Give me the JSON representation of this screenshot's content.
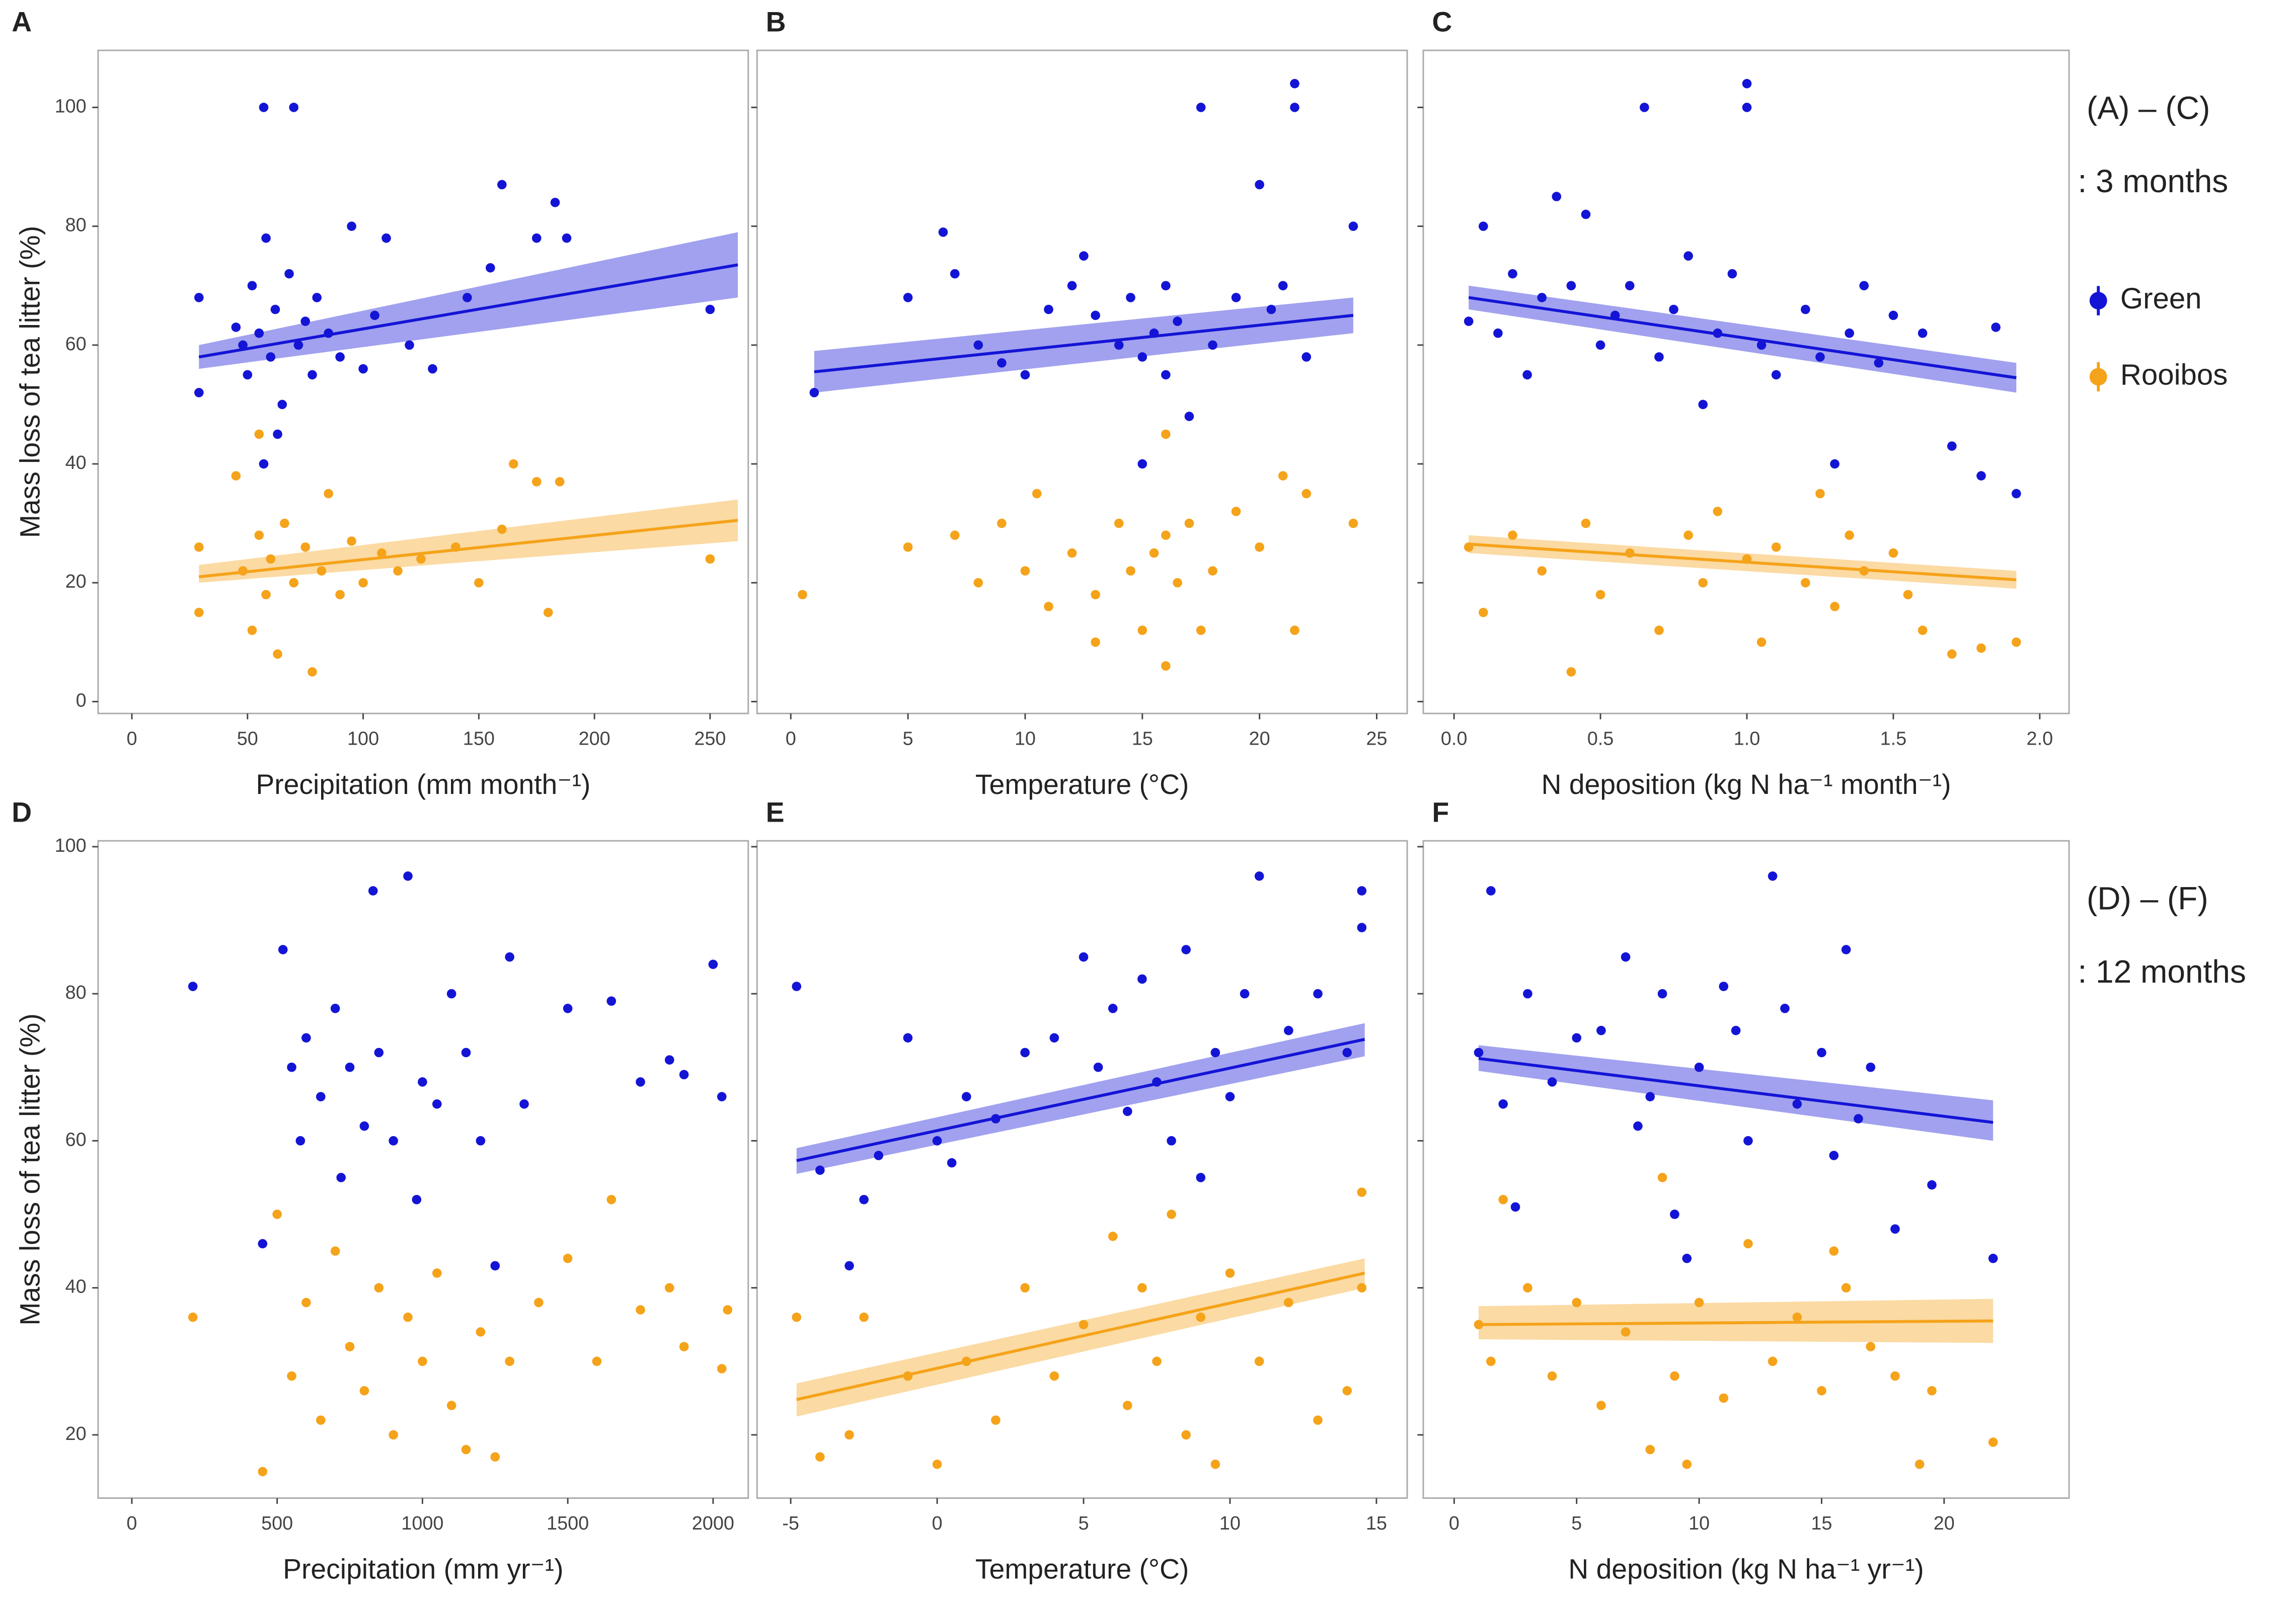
{
  "chart_data": [
    {
      "type": "scatter",
      "panel_label": "A",
      "x_label": "Precipitation (mm month⁻¹)",
      "y_label": "Mass loss of tea litter (%)",
      "xlim": [
        -14.6,
        266.5
      ],
      "xticks": [
        0,
        50,
        100,
        150,
        200,
        250
      ],
      "ylim": [
        -2,
        109.6
      ],
      "yticks": [
        0,
        20,
        40,
        60,
        80,
        100
      ],
      "series": [
        {
          "color": "#1414d6",
          "x": [
            29,
            29,
            45,
            50,
            52,
            55,
            57,
            58,
            60,
            62,
            65,
            68,
            70,
            72,
            75,
            78,
            80,
            85,
            90,
            95,
            100,
            105,
            110,
            120,
            130,
            145,
            155,
            160,
            175,
            183,
            188,
            250,
            57,
            63,
            48
          ],
          "values": [
            68,
            52,
            63,
            55,
            70,
            62,
            100,
            78,
            58,
            66,
            50,
            72,
            100,
            60,
            64,
            55,
            68,
            62,
            58,
            80,
            56,
            65,
            78,
            60,
            56,
            68,
            73,
            87,
            78,
            84,
            78,
            66,
            40,
            45,
            60
          ],
          "fit": {
            "x": [
              29,
              262
            ],
            "values": [
              58,
              73.5
            ],
            "lower": [
              56,
              68
            ],
            "upper": [
              60,
              79
            ]
          }
        },
        {
          "color": "#f5a31a",
          "x": [
            29,
            29,
            45,
            48,
            52,
            55,
            58,
            60,
            63,
            66,
            70,
            75,
            78,
            82,
            85,
            90,
            95,
            100,
            108,
            115,
            125,
            140,
            150,
            160,
            165,
            175,
            180,
            185,
            250,
            55
          ],
          "values": [
            26,
            15,
            38,
            22,
            12,
            28,
            18,
            24,
            8,
            30,
            20,
            26,
            5,
            22,
            35,
            18,
            27,
            20,
            25,
            22,
            24,
            26,
            20,
            29,
            40,
            37,
            15,
            37,
            24,
            45
          ],
          "fit": {
            "x": [
              29,
              262
            ],
            "values": [
              21,
              30.5
            ],
            "lower": [
              20,
              27
            ],
            "upper": [
              23,
              34
            ]
          }
        }
      ]
    },
    {
      "type": "scatter",
      "panel_label": "B",
      "x_label": "Temperature (°C)",
      "xlim": [
        -1.44,
        26.3
      ],
      "xticks": [
        0,
        5,
        10,
        15,
        20,
        25
      ],
      "ylim": [
        -2,
        109.6
      ],
      "series": [
        {
          "color": "#1414d6",
          "x": [
            1,
            5,
            6.5,
            7,
            8,
            9,
            10,
            11,
            12,
            12.5,
            13,
            14,
            14.5,
            15,
            15.5,
            16,
            16,
            16.5,
            17,
            17.5,
            18,
            19,
            20,
            20.5,
            21,
            21.5,
            21.5,
            22,
            24,
            15
          ],
          "values": [
            52,
            68,
            79,
            72,
            60,
            57,
            55,
            66,
            70,
            75,
            65,
            60,
            68,
            58,
            62,
            55,
            70,
            64,
            48,
            100,
            60,
            68,
            87,
            66,
            70,
            100,
            104,
            58,
            80,
            40
          ],
          "fit": {
            "x": [
              1,
              24
            ],
            "values": [
              55.5,
              65
            ],
            "lower": [
              52,
              62
            ],
            "upper": [
              59,
              68
            ]
          }
        },
        {
          "color": "#f5a31a",
          "x": [
            0.5,
            5,
            7,
            8,
            9,
            10,
            10.5,
            11,
            12,
            13,
            14,
            14.5,
            15,
            15.5,
            16,
            16,
            16.5,
            17,
            17.5,
            18,
            19,
            20,
            21,
            21.5,
            22,
            24,
            16,
            13
          ],
          "values": [
            18,
            26,
            28,
            20,
            30,
            22,
            35,
            16,
            25,
            18,
            30,
            22,
            12,
            25,
            6,
            28,
            20,
            30,
            12,
            22,
            32,
            26,
            38,
            12,
            35,
            30,
            45,
            10
          ]
        }
      ]
    },
    {
      "type": "scatter",
      "panel_label": "C",
      "x_label": "N deposition (kg N ha⁻¹ month⁻¹)",
      "xlim": [
        -0.105,
        2.1
      ],
      "xticks": [
        {
          "value": 0,
          "label": "0.0"
        },
        0.5,
        {
          "value": 1,
          "label": "1.0"
        },
        1.5,
        {
          "value": 2,
          "label": "2.0"
        }
      ],
      "ylim": [
        -2,
        109.6
      ],
      "annotations": [
        "(A) – (C)",
        ": 3 months"
      ],
      "series": [
        {
          "name": "Green",
          "color": "#1414d6",
          "x": [
            0.05,
            0.1,
            0.15,
            0.2,
            0.25,
            0.3,
            0.35,
            0.4,
            0.45,
            0.5,
            0.55,
            0.6,
            0.65,
            0.7,
            0.75,
            0.8,
            0.85,
            0.9,
            0.95,
            1.0,
            1.0,
            1.05,
            1.1,
            1.2,
            1.25,
            1.3,
            1.35,
            1.4,
            1.45,
            1.5,
            1.6,
            1.7,
            1.8,
            1.85,
            1.92
          ],
          "values": [
            64,
            80,
            62,
            72,
            55,
            68,
            85,
            70,
            82,
            60,
            65,
            70,
            100,
            58,
            66,
            75,
            50,
            62,
            72,
            100,
            104,
            60,
            55,
            66,
            58,
            40,
            62,
            70,
            57,
            65,
            62,
            43,
            38,
            63,
            35
          ],
          "fit": {
            "x": [
              0.05,
              1.92
            ],
            "values": [
              68,
              54.5
            ],
            "lower": [
              66,
              52
            ],
            "upper": [
              70,
              57
            ]
          }
        },
        {
          "name": "Rooibos",
          "color": "#f5a31a",
          "x": [
            0.05,
            0.1,
            0.2,
            0.3,
            0.4,
            0.45,
            0.5,
            0.6,
            0.7,
            0.8,
            0.85,
            0.9,
            1.0,
            1.05,
            1.1,
            1.2,
            1.25,
            1.3,
            1.35,
            1.4,
            1.5,
            1.55,
            1.6,
            1.7,
            1.8,
            1.92
          ],
          "values": [
            26,
            15,
            28,
            22,
            5,
            30,
            18,
            25,
            12,
            28,
            20,
            32,
            24,
            10,
            26,
            20,
            35,
            16,
            28,
            22,
            25,
            18,
            12,
            8,
            9,
            10
          ],
          "fit": {
            "x": [
              0.05,
              1.92
            ],
            "values": [
              26.5,
              20.5
            ],
            "lower": [
              25,
              19
            ],
            "upper": [
              28,
              22
            ]
          }
        }
      ]
    },
    {
      "type": "scatter",
      "panel_label": "D",
      "x_label": "Precipitation (mm yr⁻¹)",
      "y_label": "Mass loss of tea litter (%)",
      "xlim": [
        -116,
        2121
      ],
      "xticks": [
        0,
        500,
        1000,
        1500,
        2000
      ],
      "ylim": [
        11.4,
        100.8
      ],
      "yticks": [
        20,
        40,
        60,
        80,
        100
      ],
      "series": [
        {
          "color": "#1414d6",
          "x": [
            210,
            450,
            520,
            550,
            580,
            600,
            650,
            700,
            720,
            750,
            800,
            830,
            850,
            900,
            950,
            980,
            1000,
            1050,
            1100,
            1150,
            1200,
            1250,
            1300,
            1350,
            1500,
            1650,
            1750,
            1850,
            1900,
            2000,
            2030
          ],
          "values": [
            81,
            46,
            86,
            70,
            60,
            74,
            66,
            78,
            55,
            70,
            62,
            94,
            72,
            60,
            96,
            52,
            68,
            65,
            80,
            72,
            60,
            43,
            85,
            65,
            78,
            79,
            68,
            71,
            69,
            84,
            66
          ]
        },
        {
          "color": "#f5a31a",
          "x": [
            210,
            450,
            500,
            550,
            600,
            650,
            700,
            750,
            800,
            850,
            900,
            950,
            1000,
            1050,
            1100,
            1150,
            1200,
            1250,
            1300,
            1400,
            1500,
            1600,
            1650,
            1750,
            1850,
            1900,
            2050,
            2030
          ],
          "values": [
            36,
            15,
            50,
            28,
            38,
            22,
            45,
            32,
            26,
            40,
            20,
            36,
            30,
            42,
            24,
            18,
            34,
            17,
            30,
            38,
            44,
            30,
            52,
            37,
            40,
            32,
            37,
            29
          ]
        }
      ]
    },
    {
      "type": "scatter",
      "panel_label": "E",
      "x_label": "Temperature (°C)",
      "xlim": [
        -6.15,
        16.05
      ],
      "xticks": [
        -5,
        0,
        5,
        10,
        15
      ],
      "ylim": [
        11.4,
        100.8
      ],
      "series": [
        {
          "color": "#1414d6",
          "x": [
            -4.8,
            -4,
            -3,
            -2.5,
            -2,
            -1,
            0,
            0.5,
            1,
            2,
            3,
            4,
            5,
            5.5,
            6,
            6.5,
            7,
            7.5,
            8,
            8.5,
            9,
            9.5,
            10,
            10.5,
            11,
            12,
            13,
            14,
            14.5,
            14.5
          ],
          "values": [
            81,
            56,
            43,
            52,
            58,
            74,
            60,
            57,
            66,
            63,
            72,
            74,
            85,
            70,
            78,
            64,
            82,
            68,
            60,
            86,
            55,
            72,
            66,
            80,
            96,
            75,
            80,
            72,
            94,
            89
          ],
          "fit": {
            "x": [
              -4.8,
              14.6
            ],
            "values": [
              57.3,
              73.8
            ],
            "lower": [
              55.5,
              71.5
            ],
            "upper": [
              59,
              76
            ]
          }
        },
        {
          "color": "#f5a31a",
          "x": [
            -4.8,
            -4,
            -3,
            -2.5,
            -1,
            0,
            1,
            2,
            3,
            4,
            5,
            6,
            6.5,
            7,
            7.5,
            8,
            8.5,
            9,
            9.5,
            10,
            11,
            12,
            13,
            14,
            14.5,
            14.5
          ],
          "values": [
            36,
            17,
            20,
            36,
            28,
            16,
            30,
            22,
            40,
            28,
            35,
            47,
            24,
            40,
            30,
            50,
            20,
            36,
            16,
            42,
            30,
            38,
            22,
            26,
            53,
            40
          ],
          "fit": {
            "x": [
              -4.8,
              14.6
            ],
            "values": [
              24.8,
              42
            ],
            "lower": [
              22.5,
              40
            ],
            "upper": [
              27,
              44
            ]
          }
        }
      ]
    },
    {
      "type": "scatter",
      "panel_label": "F",
      "x_label": "N deposition (kg N ha⁻¹ yr⁻¹)",
      "xlim": [
        -1.26,
        25.1
      ],
      "xticks": [
        0,
        5,
        10,
        15,
        20
      ],
      "ylim": [
        11.4,
        100.8
      ],
      "annotations": [
        "(D) – (F)",
        ": 12 months"
      ],
      "series": [
        {
          "color": "#1414d6",
          "x": [
            1,
            1.5,
            2,
            2.5,
            3,
            4,
            5,
            6,
            7,
            7.5,
            8,
            8.5,
            9,
            9.5,
            10,
            11,
            11.5,
            12,
            13,
            13.5,
            14,
            15,
            15.5,
            16,
            16.5,
            17,
            18,
            19.5,
            22
          ],
          "values": [
            72,
            94,
            65,
            51,
            80,
            68,
            74,
            75,
            85,
            62,
            66,
            80,
            50,
            44,
            70,
            81,
            75,
            60,
            96,
            78,
            65,
            72,
            58,
            86,
            63,
            70,
            48,
            54,
            44
          ],
          "fit": {
            "x": [
              1,
              22
            ],
            "values": [
              71.2,
              62.5
            ],
            "lower": [
              69.5,
              60
            ],
            "upper": [
              73,
              65.5
            ]
          }
        },
        {
          "color": "#f5a31a",
          "x": [
            1,
            1.5,
            2,
            3,
            4,
            5,
            6,
            7,
            8,
            8.5,
            9,
            9.5,
            10,
            11,
            12,
            13,
            14,
            15,
            15.5,
            16,
            17,
            18,
            19,
            19.5,
            22
          ],
          "values": [
            35,
            30,
            52,
            40,
            28,
            38,
            24,
            34,
            18,
            55,
            28,
            16,
            38,
            25,
            46,
            30,
            36,
            26,
            45,
            40,
            32,
            28,
            16,
            26,
            19
          ],
          "fit": {
            "x": [
              1,
              22
            ],
            "values": [
              35,
              35.5
            ],
            "lower": [
              33,
              32.5
            ],
            "upper": [
              37.5,
              38.5
            ]
          }
        }
      ]
    }
  ]
}
